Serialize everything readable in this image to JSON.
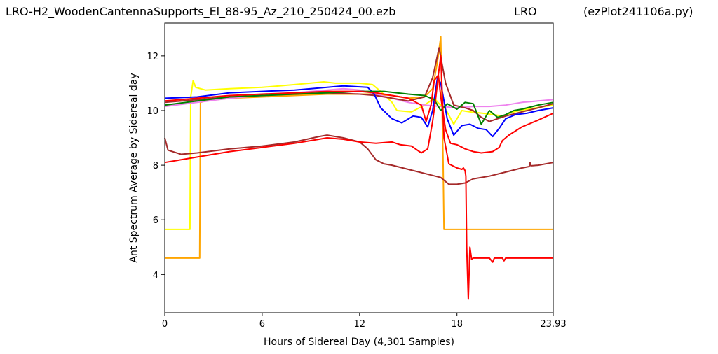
{
  "header": {
    "file_title": "LRO-H2_WoodenCantennaSupports_El_88-95_Az_210_250424_00.ezb",
    "site_title": "LRO",
    "program_title": "(ezPlot241106a.py)"
  },
  "chart_data": {
    "type": "line",
    "xlabel": "Hours of Sidereal Day  (4,301 Samples)",
    "ylabel": "Ant Spectrum Average by Sidereal day",
    "xlim": [
      0,
      23.93
    ],
    "ylim": [
      2.6,
      13.2
    ],
    "xticks": [
      0,
      6,
      12,
      18,
      23.93
    ],
    "xtick_labels": [
      "0",
      "6",
      "12",
      "18",
      "23.93"
    ],
    "yticks": [
      4,
      6,
      8,
      10,
      12
    ],
    "ytick_labels": [
      "4",
      "6",
      "8",
      "10",
      "12"
    ],
    "grid": false,
    "legend": "none",
    "series": [
      {
        "color": "#ffff00",
        "points": [
          [
            0,
            5.65
          ],
          [
            1.55,
            5.65
          ],
          [
            1.6,
            10.5
          ],
          [
            1.75,
            11.1
          ],
          [
            1.9,
            10.85
          ],
          [
            2.5,
            10.75
          ],
          [
            4,
            10.8
          ],
          [
            6,
            10.85
          ],
          [
            8,
            10.95
          ],
          [
            9.8,
            11.05
          ],
          [
            10.5,
            11.0
          ],
          [
            12,
            11.0
          ],
          [
            12.8,
            10.95
          ],
          [
            13.3,
            10.7
          ],
          [
            14,
            10.3
          ],
          [
            14.3,
            10.0
          ],
          [
            15.2,
            9.95
          ],
          [
            16,
            10.2
          ],
          [
            16.6,
            10.45
          ],
          [
            16.9,
            10.25
          ],
          [
            17.3,
            10.05
          ],
          [
            17.8,
            9.5
          ],
          [
            18.3,
            10.0
          ],
          [
            18.8,
            9.95
          ],
          [
            19.6,
            9.9
          ],
          [
            20.2,
            9.85
          ],
          [
            20.8,
            9.8
          ],
          [
            21.5,
            9.95
          ],
          [
            22.3,
            10.05
          ],
          [
            23.93,
            10.2
          ]
        ]
      },
      {
        "color": "#ffa500",
        "points": [
          [
            0,
            4.6
          ],
          [
            2.15,
            4.6
          ],
          [
            2.2,
            10.3
          ],
          [
            2.5,
            10.35
          ],
          [
            4,
            10.45
          ],
          [
            6,
            10.5
          ],
          [
            8,
            10.55
          ],
          [
            10,
            10.6
          ],
          [
            12,
            10.6
          ],
          [
            13,
            10.6
          ],
          [
            14,
            10.55
          ],
          [
            15,
            10.45
          ],
          [
            16,
            10.5
          ],
          [
            16.5,
            10.8
          ],
          [
            16.8,
            11.8
          ],
          [
            17.0,
            12.7
          ],
          [
            17.15,
            8.0
          ],
          [
            17.2,
            5.65
          ],
          [
            23.93,
            5.65
          ]
        ]
      },
      {
        "color": "#ee82ee",
        "points": [
          [
            0,
            10.15
          ],
          [
            2,
            10.3
          ],
          [
            4,
            10.45
          ],
          [
            6,
            10.55
          ],
          [
            8,
            10.65
          ],
          [
            10,
            10.75
          ],
          [
            11,
            10.8
          ],
          [
            12,
            10.75
          ],
          [
            13,
            10.6
          ],
          [
            14,
            10.45
          ],
          [
            15,
            10.3
          ],
          [
            16,
            10.2
          ],
          [
            17,
            10.15
          ],
          [
            18,
            10.1
          ],
          [
            19,
            10.15
          ],
          [
            20,
            10.15
          ],
          [
            21,
            10.2
          ],
          [
            22,
            10.3
          ],
          [
            23,
            10.35
          ],
          [
            23.93,
            10.4
          ]
        ]
      },
      {
        "color": "#a52a2a",
        "points": [
          [
            0,
            10.3
          ],
          [
            2,
            10.4
          ],
          [
            4,
            10.5
          ],
          [
            6,
            10.55
          ],
          [
            8,
            10.6
          ],
          [
            10,
            10.65
          ],
          [
            12,
            10.6
          ],
          [
            13,
            10.55
          ],
          [
            14,
            10.45
          ],
          [
            15,
            10.35
          ],
          [
            16,
            10.5
          ],
          [
            16.5,
            11.2
          ],
          [
            16.9,
            12.3
          ],
          [
            17.3,
            11.0
          ],
          [
            17.8,
            10.2
          ],
          [
            18.5,
            10.1
          ],
          [
            19,
            10.0
          ],
          [
            19.5,
            9.75
          ],
          [
            20,
            9.6
          ],
          [
            20.5,
            9.7
          ],
          [
            21,
            9.8
          ],
          [
            22,
            9.95
          ],
          [
            23,
            10.1
          ],
          [
            23.93,
            10.25
          ]
        ]
      },
      {
        "color": "#0000ff",
        "points": [
          [
            0,
            10.45
          ],
          [
            2,
            10.5
          ],
          [
            4,
            10.65
          ],
          [
            6,
            10.7
          ],
          [
            8,
            10.75
          ],
          [
            10,
            10.85
          ],
          [
            11,
            10.9
          ],
          [
            12.5,
            10.85
          ],
          [
            12.9,
            10.6
          ],
          [
            13.3,
            10.1
          ],
          [
            14,
            9.7
          ],
          [
            14.6,
            9.55
          ],
          [
            15.3,
            9.8
          ],
          [
            15.8,
            9.75
          ],
          [
            16.2,
            9.4
          ],
          [
            16.5,
            10.0
          ],
          [
            16.8,
            11.2
          ],
          [
            17.0,
            11.0
          ],
          [
            17.4,
            9.7
          ],
          [
            17.8,
            9.1
          ],
          [
            18.3,
            9.45
          ],
          [
            18.8,
            9.5
          ],
          [
            19.3,
            9.35
          ],
          [
            19.8,
            9.3
          ],
          [
            20.2,
            9.05
          ],
          [
            20.6,
            9.35
          ],
          [
            21,
            9.7
          ],
          [
            21.6,
            9.85
          ],
          [
            22.3,
            9.9
          ],
          [
            23,
            10.0
          ],
          [
            23.93,
            10.1
          ]
        ]
      },
      {
        "color": "#008000",
        "points": [
          [
            0,
            10.2
          ],
          [
            2,
            10.35
          ],
          [
            4,
            10.5
          ],
          [
            6,
            10.55
          ],
          [
            8,
            10.6
          ],
          [
            10,
            10.65
          ],
          [
            12,
            10.7
          ],
          [
            13.5,
            10.7
          ],
          [
            15,
            10.6
          ],
          [
            16,
            10.55
          ],
          [
            16.6,
            10.4
          ],
          [
            17.0,
            10.0
          ],
          [
            17.4,
            10.25
          ],
          [
            18,
            10.05
          ],
          [
            18.5,
            10.3
          ],
          [
            19,
            10.25
          ],
          [
            19.5,
            9.5
          ],
          [
            20,
            10.0
          ],
          [
            20.5,
            9.75
          ],
          [
            21,
            9.85
          ],
          [
            21.5,
            10.0
          ],
          [
            22,
            10.05
          ],
          [
            23,
            10.2
          ],
          [
            23.93,
            10.3
          ]
        ]
      },
      {
        "color": "#a52a2a",
        "points": [
          [
            0,
            9.0
          ],
          [
            0.2,
            8.55
          ],
          [
            1,
            8.4
          ],
          [
            2,
            8.45
          ],
          [
            4,
            8.6
          ],
          [
            6,
            8.7
          ],
          [
            8,
            8.85
          ],
          [
            9.5,
            9.05
          ],
          [
            10,
            9.1
          ],
          [
            11,
            9.0
          ],
          [
            12,
            8.85
          ],
          [
            12.5,
            8.6
          ],
          [
            13,
            8.2
          ],
          [
            13.5,
            8.05
          ],
          [
            14,
            8.0
          ],
          [
            15,
            7.85
          ],
          [
            16,
            7.7
          ],
          [
            17,
            7.55
          ],
          [
            17.5,
            7.3
          ],
          [
            18,
            7.3
          ],
          [
            18.5,
            7.35
          ],
          [
            19,
            7.5
          ],
          [
            20,
            7.6
          ],
          [
            21,
            7.75
          ],
          [
            22,
            7.9
          ],
          [
            22.45,
            7.95
          ],
          [
            22.5,
            8.1
          ],
          [
            22.55,
            7.98
          ],
          [
            23,
            8.0
          ],
          [
            23.93,
            8.1
          ]
        ]
      },
      {
        "color": "#ff0000",
        "points": [
          [
            0,
            8.1
          ],
          [
            2,
            8.3
          ],
          [
            4,
            8.5
          ],
          [
            6,
            8.65
          ],
          [
            8,
            8.8
          ],
          [
            9.5,
            8.95
          ],
          [
            10,
            9.0
          ],
          [
            11,
            8.95
          ],
          [
            12,
            8.85
          ],
          [
            13,
            8.8
          ],
          [
            14,
            8.85
          ],
          [
            14.5,
            8.75
          ],
          [
            15.2,
            8.7
          ],
          [
            15.8,
            8.45
          ],
          [
            16.2,
            8.6
          ],
          [
            16.5,
            9.6
          ],
          [
            16.7,
            10.5
          ],
          [
            16.85,
            11.3
          ],
          [
            17.0,
            12.0
          ],
          [
            17.1,
            10.5
          ],
          [
            17.2,
            9.0
          ],
          [
            17.5,
            8.05
          ],
          [
            18,
            7.9
          ],
          [
            18.3,
            7.85
          ],
          [
            18.4,
            7.9
          ],
          [
            18.5,
            7.8
          ],
          [
            18.55,
            7.6
          ],
          [
            18.6,
            5.0
          ],
          [
            18.7,
            3.1
          ],
          [
            18.8,
            5.0
          ],
          [
            18.9,
            4.55
          ],
          [
            19.0,
            4.6
          ],
          [
            20,
            4.6
          ],
          [
            20.2,
            4.45
          ],
          [
            20.3,
            4.6
          ],
          [
            20.8,
            4.6
          ],
          [
            20.9,
            4.5
          ],
          [
            21.0,
            4.6
          ],
          [
            23.93,
            4.6
          ]
        ]
      },
      {
        "color": "#ff0000",
        "points": [
          [
            0,
            10.35
          ],
          [
            2,
            10.45
          ],
          [
            4,
            10.55
          ],
          [
            6,
            10.6
          ],
          [
            8,
            10.65
          ],
          [
            10,
            10.7
          ],
          [
            12,
            10.7
          ],
          [
            13,
            10.65
          ],
          [
            14,
            10.55
          ],
          [
            15,
            10.45
          ],
          [
            15.8,
            10.2
          ],
          [
            16.1,
            9.6
          ],
          [
            16.4,
            10.2
          ],
          [
            16.6,
            11.1
          ],
          [
            16.85,
            11.3
          ],
          [
            17.0,
            10.5
          ],
          [
            17.3,
            9.3
          ],
          [
            17.6,
            8.8
          ],
          [
            18,
            8.75
          ],
          [
            18.5,
            8.6
          ],
          [
            19,
            8.5
          ],
          [
            19.5,
            8.45
          ],
          [
            20.2,
            8.5
          ],
          [
            20.6,
            8.65
          ],
          [
            20.8,
            8.9
          ],
          [
            21.2,
            9.1
          ],
          [
            22,
            9.4
          ],
          [
            23,
            9.65
          ],
          [
            23.93,
            9.9
          ]
        ]
      }
    ]
  }
}
